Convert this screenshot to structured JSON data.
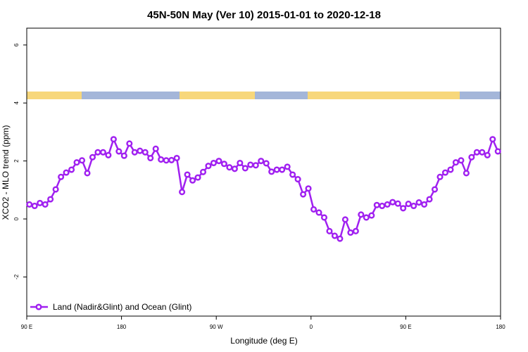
{
  "chart_data": {
    "type": "line",
    "title": "45N-50N May (Ver 10)   2015-01-01 to 2020-12-18",
    "x_label": "Longitude (deg E)",
    "y_label": "XCO2 - MLO trend (ppm)",
    "x": [
      92.5,
      97.5,
      102.5,
      107.5,
      112.5,
      117.5,
      122.5,
      127.5,
      132.5,
      137.5,
      142.5,
      147.5,
      152.5,
      157.5,
      162.5,
      167.5,
      172.5,
      177.5,
      182.5,
      187.5,
      192.5,
      197.5,
      202.5,
      207.5,
      212.5,
      217.5,
      222.5,
      227.5,
      232.5,
      237.5,
      242.5,
      247.5,
      252.5,
      257.5,
      262.5,
      267.5,
      272.5,
      277.5,
      282.5,
      287.5,
      292.5,
      297.5,
      302.5,
      307.5,
      312.5,
      317.5,
      322.5,
      327.5,
      332.5,
      337.5,
      342.5,
      347.5,
      352.5,
      357.5,
      362.5,
      367.5,
      372.5,
      377.5,
      382.5,
      387.5,
      392.5,
      397.5,
      402.5,
      407.5,
      412.5,
      417.5,
      422.5,
      427.5,
      432.5,
      437.5,
      442.5,
      447.5,
      452.5,
      457.5,
      462.5,
      467.5,
      472.5,
      477.5,
      482.5,
      487.5,
      492.5,
      497.5,
      502.5,
      507.5,
      512.5,
      517.5,
      522.5,
      527.5,
      532.5,
      537.5
    ],
    "series": [
      {
        "name": "Land (Nadir&Glint) and Ocean (Glint)",
        "color": "#a020f0",
        "values": [
          0.5,
          0.45,
          0.55,
          0.5,
          0.68,
          1.02,
          1.45,
          1.6,
          1.7,
          1.95,
          2.02,
          1.58,
          2.13,
          2.3,
          2.3,
          2.2,
          2.75,
          2.33,
          2.18,
          2.6,
          2.3,
          2.35,
          2.3,
          2.1,
          2.42,
          2.05,
          2.02,
          2.03,
          2.1,
          0.93,
          1.53,
          1.33,
          1.43,
          1.62,
          1.83,
          1.93,
          2.0,
          1.9,
          1.78,
          1.73,
          1.93,
          1.75,
          1.87,
          1.85,
          2.0,
          1.92,
          1.63,
          1.7,
          1.7,
          1.8,
          1.53,
          1.37,
          0.85,
          1.05,
          0.33,
          0.22,
          0.05,
          -0.42,
          -0.58,
          -0.68,
          -0.02,
          -0.47,
          -0.42,
          0.15,
          0.05,
          0.12,
          0.48,
          0.45,
          0.5,
          0.58,
          0.53,
          0.37,
          0.52,
          0.45,
          0.57,
          0.5,
          0.68,
          1.02,
          1.45,
          1.6,
          1.7,
          1.95,
          2.02,
          1.58,
          2.13,
          2.3,
          2.3,
          2.2,
          2.75,
          2.33
        ]
      }
    ],
    "xlim": [
      90,
      540
    ],
    "xticks": [
      {
        "value": 90,
        "label": "90 E"
      },
      180,
      {
        "value": 270,
        "label": "90 W"
      },
      {
        "value": 360,
        "label": "0"
      },
      {
        "value": 450,
        "label": "90 E"
      },
      {
        "value": 540,
        "label": "180"
      }
    ],
    "ylim": [
      -3.35,
      6.58
    ],
    "yticks": [
      -2,
      0,
      2,
      4,
      6
    ],
    "legend": "bottom-left"
  }
}
